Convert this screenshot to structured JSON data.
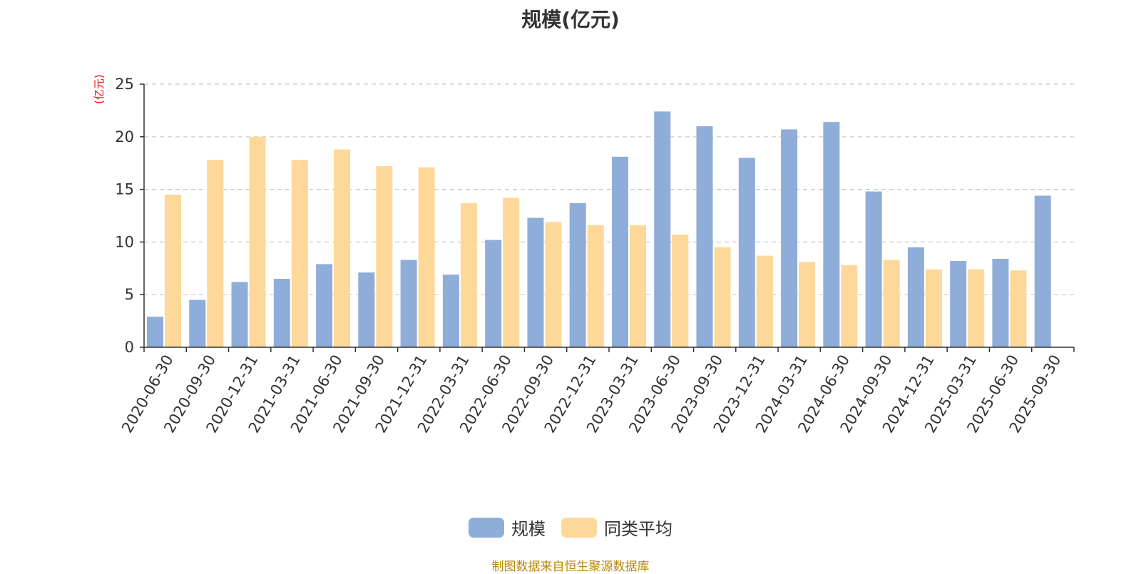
{
  "chart_data": {
    "type": "bar",
    "title": "规模(亿元)",
    "ylabel": "(亿元)",
    "xlabel": "",
    "ylim": [
      0,
      25
    ],
    "yticks": [
      0,
      5,
      10,
      15,
      20,
      25
    ],
    "grid": true,
    "legend_position": "bottom-center",
    "categories": [
      "2020-06-30",
      "2020-09-30",
      "2020-12-31",
      "2021-03-31",
      "2021-06-30",
      "2021-09-30",
      "2021-12-31",
      "2022-03-31",
      "2022-06-30",
      "2022-09-30",
      "2022-12-31",
      "2023-03-31",
      "2023-06-30",
      "2023-09-30",
      "2023-12-31",
      "2024-03-31",
      "2024-06-30",
      "2024-09-30",
      "2024-12-31",
      "2025-03-31",
      "2025-06-30",
      "2025-09-30"
    ],
    "series": [
      {
        "name": "规模",
        "color": "#8eadd9",
        "values": [
          2.9,
          4.5,
          6.2,
          6.5,
          7.9,
          7.1,
          8.3,
          6.9,
          10.2,
          12.3,
          13.7,
          18.1,
          22.4,
          21.0,
          18.0,
          20.7,
          21.4,
          14.8,
          9.5,
          8.2,
          8.4,
          14.4
        ]
      },
      {
        "name": "同类平均",
        "color": "#fdd899",
        "values": [
          14.5,
          17.8,
          20.0,
          17.8,
          18.8,
          17.2,
          17.1,
          13.7,
          14.2,
          11.9,
          11.6,
          11.6,
          10.7,
          9.5,
          8.7,
          8.1,
          7.8,
          8.3,
          7.4,
          7.4,
          7.3,
          null
        ]
      }
    ]
  },
  "legend": {
    "items": [
      {
        "label": "规模",
        "color": "#8eadd9"
      },
      {
        "label": "同类平均",
        "color": "#fdd899"
      }
    ]
  },
  "footer": {
    "source": "制图数据来自恒生聚源数据库"
  }
}
